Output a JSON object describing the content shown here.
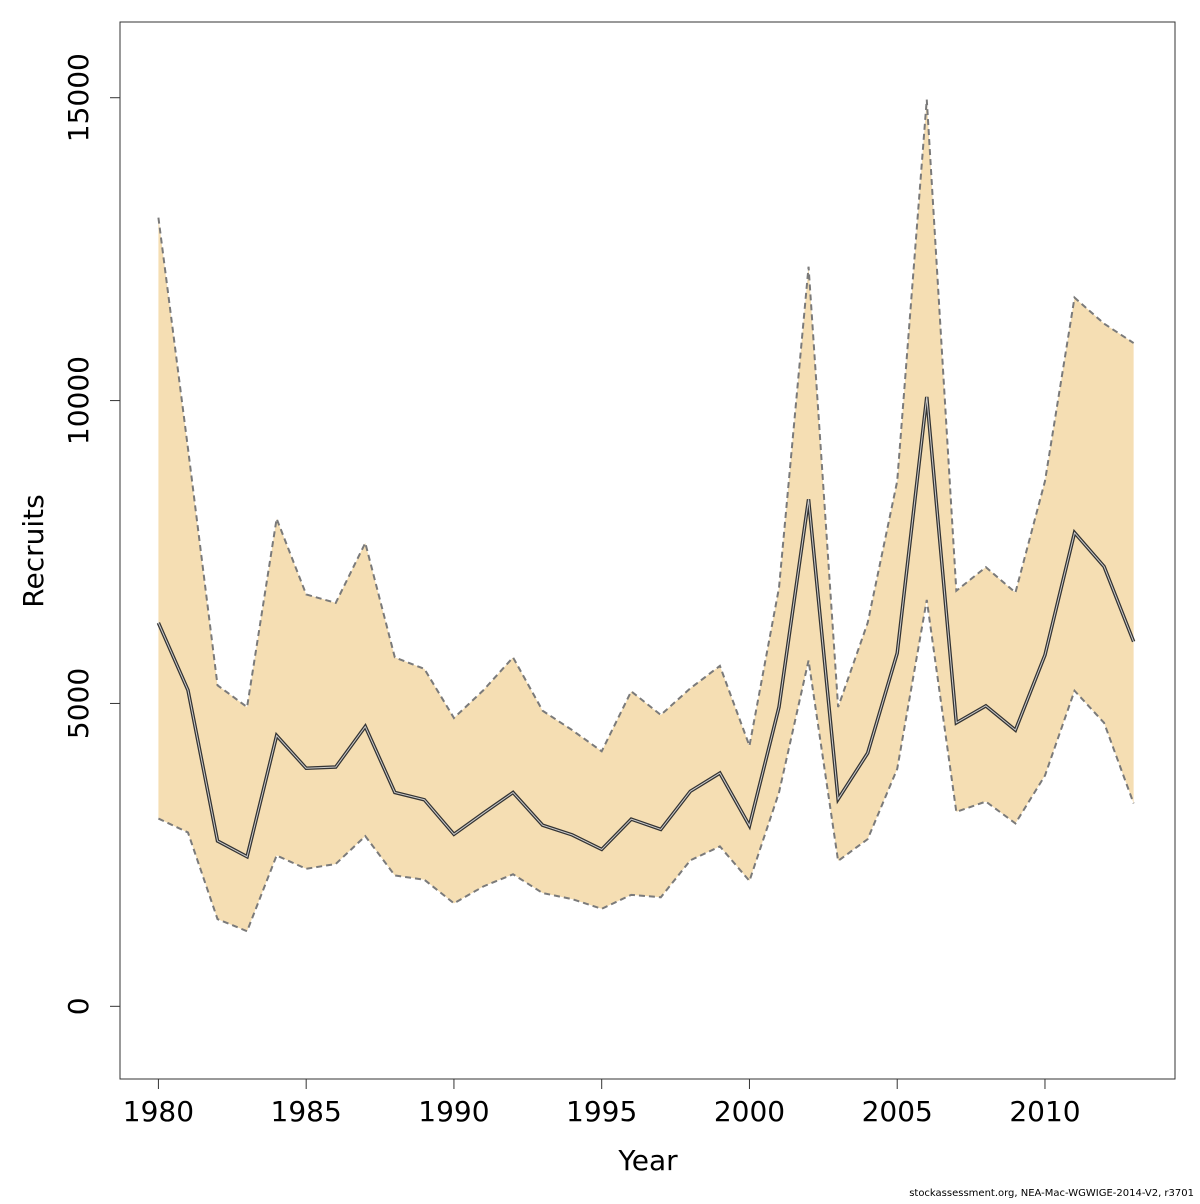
{
  "chart_data": {
    "type": "area",
    "title": "",
    "xlabel": "Year",
    "ylabel": "Recruits",
    "xlim": [
      1978.7,
      2014.4
    ],
    "ylim": [
      -1200,
      16250
    ],
    "x_ticks": [
      1980,
      1985,
      1990,
      1995,
      2000,
      2005,
      2010
    ],
    "y_ticks": [
      0,
      5000,
      10000,
      15000
    ],
    "grid": false,
    "colors": {
      "band": "#F5DEB3",
      "band_edge": "#7a7a7a",
      "estimate": "#333333"
    },
    "x": [
      1980,
      1981,
      1982,
      1983,
      1984,
      1985,
      1986,
      1987,
      1988,
      1989,
      1990,
      1991,
      1992,
      1993,
      1994,
      1995,
      1996,
      1997,
      1998,
      1999,
      2000,
      2001,
      2002,
      2003,
      2004,
      2005,
      2006,
      2007,
      2008,
      2009,
      2010,
      2011,
      2012,
      2013
    ],
    "series": [
      {
        "role": "estimate",
        "values": [
          6330,
          5220,
          2730,
          2470,
          4470,
          3930,
          3950,
          4620,
          3530,
          3410,
          2840,
          3190,
          3530,
          2990,
          2830,
          2590,
          3090,
          2920,
          3550,
          3850,
          2980,
          4940,
          8370,
          3420,
          4180,
          5830,
          10060,
          4680,
          4960,
          4560,
          5800,
          7820,
          7260,
          6020
        ]
      },
      {
        "role": "upper",
        "values": [
          13020,
          9210,
          5300,
          4940,
          8050,
          6800,
          6660,
          7650,
          5760,
          5570,
          4760,
          5220,
          5760,
          4880,
          4560,
          4210,
          5200,
          4810,
          5250,
          5620,
          4300,
          6910,
          12210,
          4940,
          6330,
          8670,
          14970,
          6860,
          7250,
          6830,
          8670,
          11700,
          11270,
          10950
        ]
      },
      {
        "role": "lower",
        "values": [
          3100,
          2870,
          1440,
          1240,
          2490,
          2270,
          2350,
          2810,
          2160,
          2090,
          1700,
          1980,
          2180,
          1870,
          1770,
          1610,
          1840,
          1800,
          2410,
          2640,
          2070,
          3530,
          5710,
          2400,
          2760,
          3920,
          6710,
          3210,
          3380,
          3020,
          3810,
          5210,
          4680,
          3350
        ]
      }
    ]
  },
  "footer": {
    "credit": "stockassessment.org, NEA-Mac-WGWIGE-2014-V2, r3701"
  }
}
